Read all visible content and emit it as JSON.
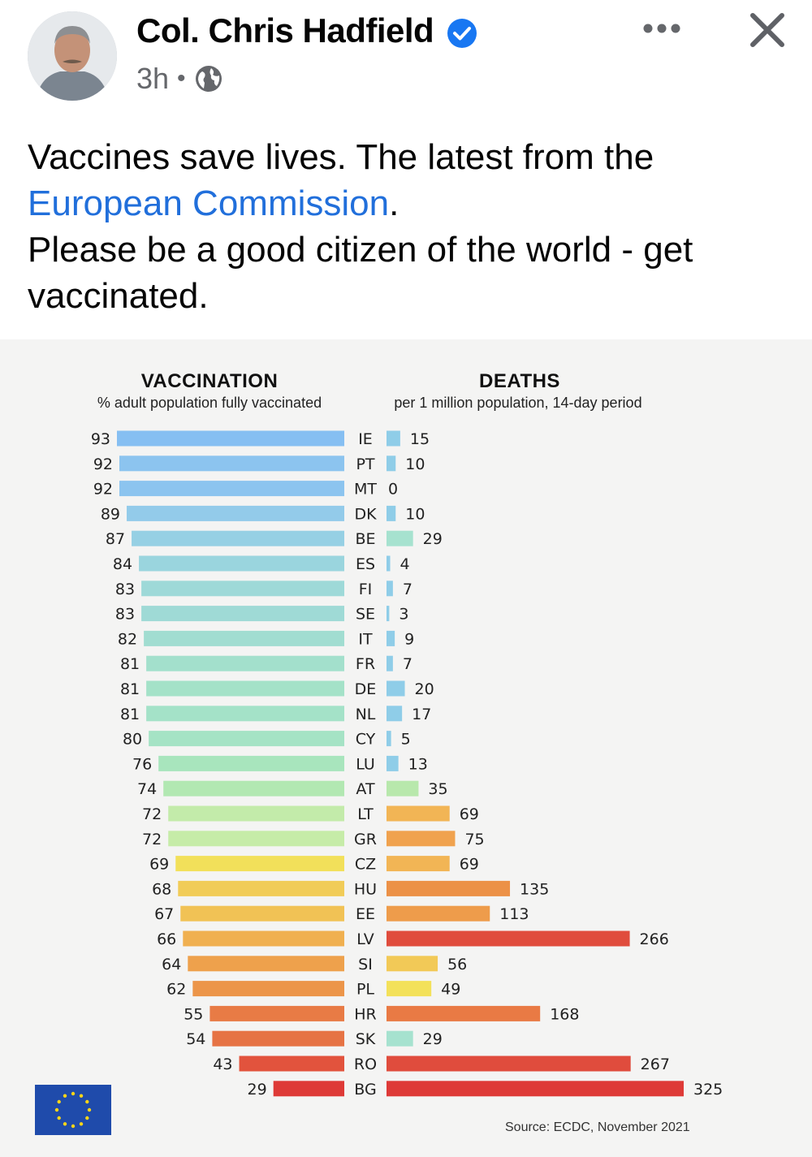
{
  "post": {
    "author": "Col. Chris Hadfield",
    "time": "3h",
    "separator": "•",
    "text_line1": "Vaccines save lives. The latest from the",
    "link_text": "European Commission",
    "text_after_link": ".",
    "text_line3": "Please be a good citizen of the world - get vaccinated.",
    "icons": {
      "verified": "verified-badge-icon",
      "audience": "globe-icon",
      "more": "more-options-icon",
      "close": "close-icon"
    },
    "colors": {
      "link": "#216fdb",
      "verified": "#1877f2"
    }
  },
  "chart_data": {
    "type": "bar",
    "left_panel": {
      "title": "VACCINATION",
      "subtitle": "% adult population fully vaccinated"
    },
    "right_panel": {
      "title": "DEATHS",
      "subtitle": "per 1 million population, 14-day period"
    },
    "source": "Source: ECDC, November 2021",
    "categories": [
      "IE",
      "PT",
      "MT",
      "DK",
      "BE",
      "ES",
      "FI",
      "SE",
      "IT",
      "FR",
      "DE",
      "NL",
      "CY",
      "LU",
      "AT",
      "LT",
      "GR",
      "CZ",
      "HU",
      "EE",
      "LV",
      "SI",
      "PL",
      "HR",
      "SK",
      "RO",
      "BG"
    ],
    "series": [
      {
        "name": "VACCINATION",
        "values": [
          93,
          92,
          92,
          89,
          87,
          84,
          83,
          83,
          82,
          81,
          81,
          81,
          80,
          76,
          74,
          72,
          72,
          69,
          68,
          67,
          66,
          64,
          62,
          55,
          54,
          43,
          29
        ]
      },
      {
        "name": "DEATHS",
        "values": [
          15,
          10,
          0,
          10,
          29,
          4,
          7,
          3,
          9,
          7,
          20,
          17,
          5,
          13,
          35,
          69,
          75,
          69,
          135,
          113,
          266,
          56,
          49,
          168,
          29,
          267,
          325
        ]
      }
    ],
    "vaccination_colors": [
      "#86bff2",
      "#8cc4ef",
      "#8cc4ef",
      "#93cbea",
      "#96d0e4",
      "#9ad5de",
      "#9ed9d8",
      "#9fdad6",
      "#a1ddd1",
      "#a3e0cc",
      "#a4e2c8",
      "#a4e2c8",
      "#a5e3c5",
      "#a8e5bd",
      "#b2e8b2",
      "#c3ebaa",
      "#c6eca8",
      "#f2e05a",
      "#f1cc58",
      "#f1c255",
      "#f0b050",
      "#eea14c",
      "#ec9549",
      "#e87b45",
      "#e67344",
      "#e2533d",
      "#de3a37"
    ],
    "deaths_colors": [
      "#8fcde8",
      "#8fcde8",
      "#8fcde8",
      "#8fcde8",
      "#a6e2cf",
      "#8fcde8",
      "#8fcde8",
      "#8fcde8",
      "#8fcde8",
      "#8fcde8",
      "#8fcde8",
      "#8fcde8",
      "#8fcde8",
      "#8fcde8",
      "#b8e8ac",
      "#f2b555",
      "#f0a24e",
      "#f2b555",
      "#ec9147",
      "#ee9c4b",
      "#e04c3d",
      "#f2c957",
      "#f3e15a",
      "#e97a44",
      "#a6e2cf",
      "#e04c3d",
      "#de3a37"
    ]
  }
}
